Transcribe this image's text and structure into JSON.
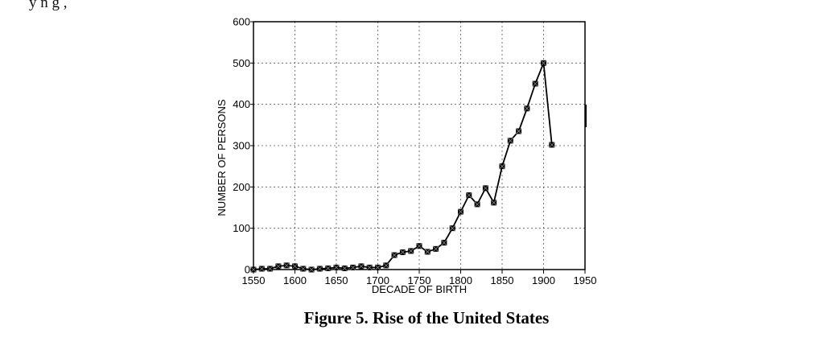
{
  "top_text": "y  n   g                                                                                  ,",
  "caption": "Figure 5. Rise of the United States",
  "chart_data": {
    "type": "line",
    "title": "",
    "xlabel": "DECADE OF BIRTH",
    "ylabel": "NUMBER OF PERSONS",
    "xlim": [
      1550,
      1950
    ],
    "ylim": [
      0,
      600
    ],
    "xticks": [
      1550,
      1600,
      1650,
      1700,
      1750,
      1800,
      1850,
      1900,
      1950
    ],
    "yticks": [
      0,
      100,
      200,
      300,
      400,
      500,
      600
    ],
    "grid": true,
    "series": [
      {
        "name": "Number of persons",
        "x": [
          1550,
          1560,
          1570,
          1580,
          1590,
          1600,
          1610,
          1620,
          1630,
          1640,
          1650,
          1660,
          1670,
          1680,
          1690,
          1700,
          1710,
          1720,
          1730,
          1740,
          1750,
          1760,
          1770,
          1780,
          1790,
          1800,
          1810,
          1820,
          1830,
          1840,
          1850,
          1860,
          1870,
          1880,
          1890,
          1900,
          1910
        ],
        "values": [
          0,
          2,
          2,
          8,
          10,
          8,
          2,
          0,
          2,
          3,
          5,
          3,
          5,
          8,
          5,
          5,
          10,
          35,
          42,
          45,
          57,
          43,
          50,
          65,
          100,
          140,
          180,
          158,
          197,
          162,
          250,
          312,
          335,
          390,
          450,
          500,
          302
        ]
      }
    ]
  }
}
